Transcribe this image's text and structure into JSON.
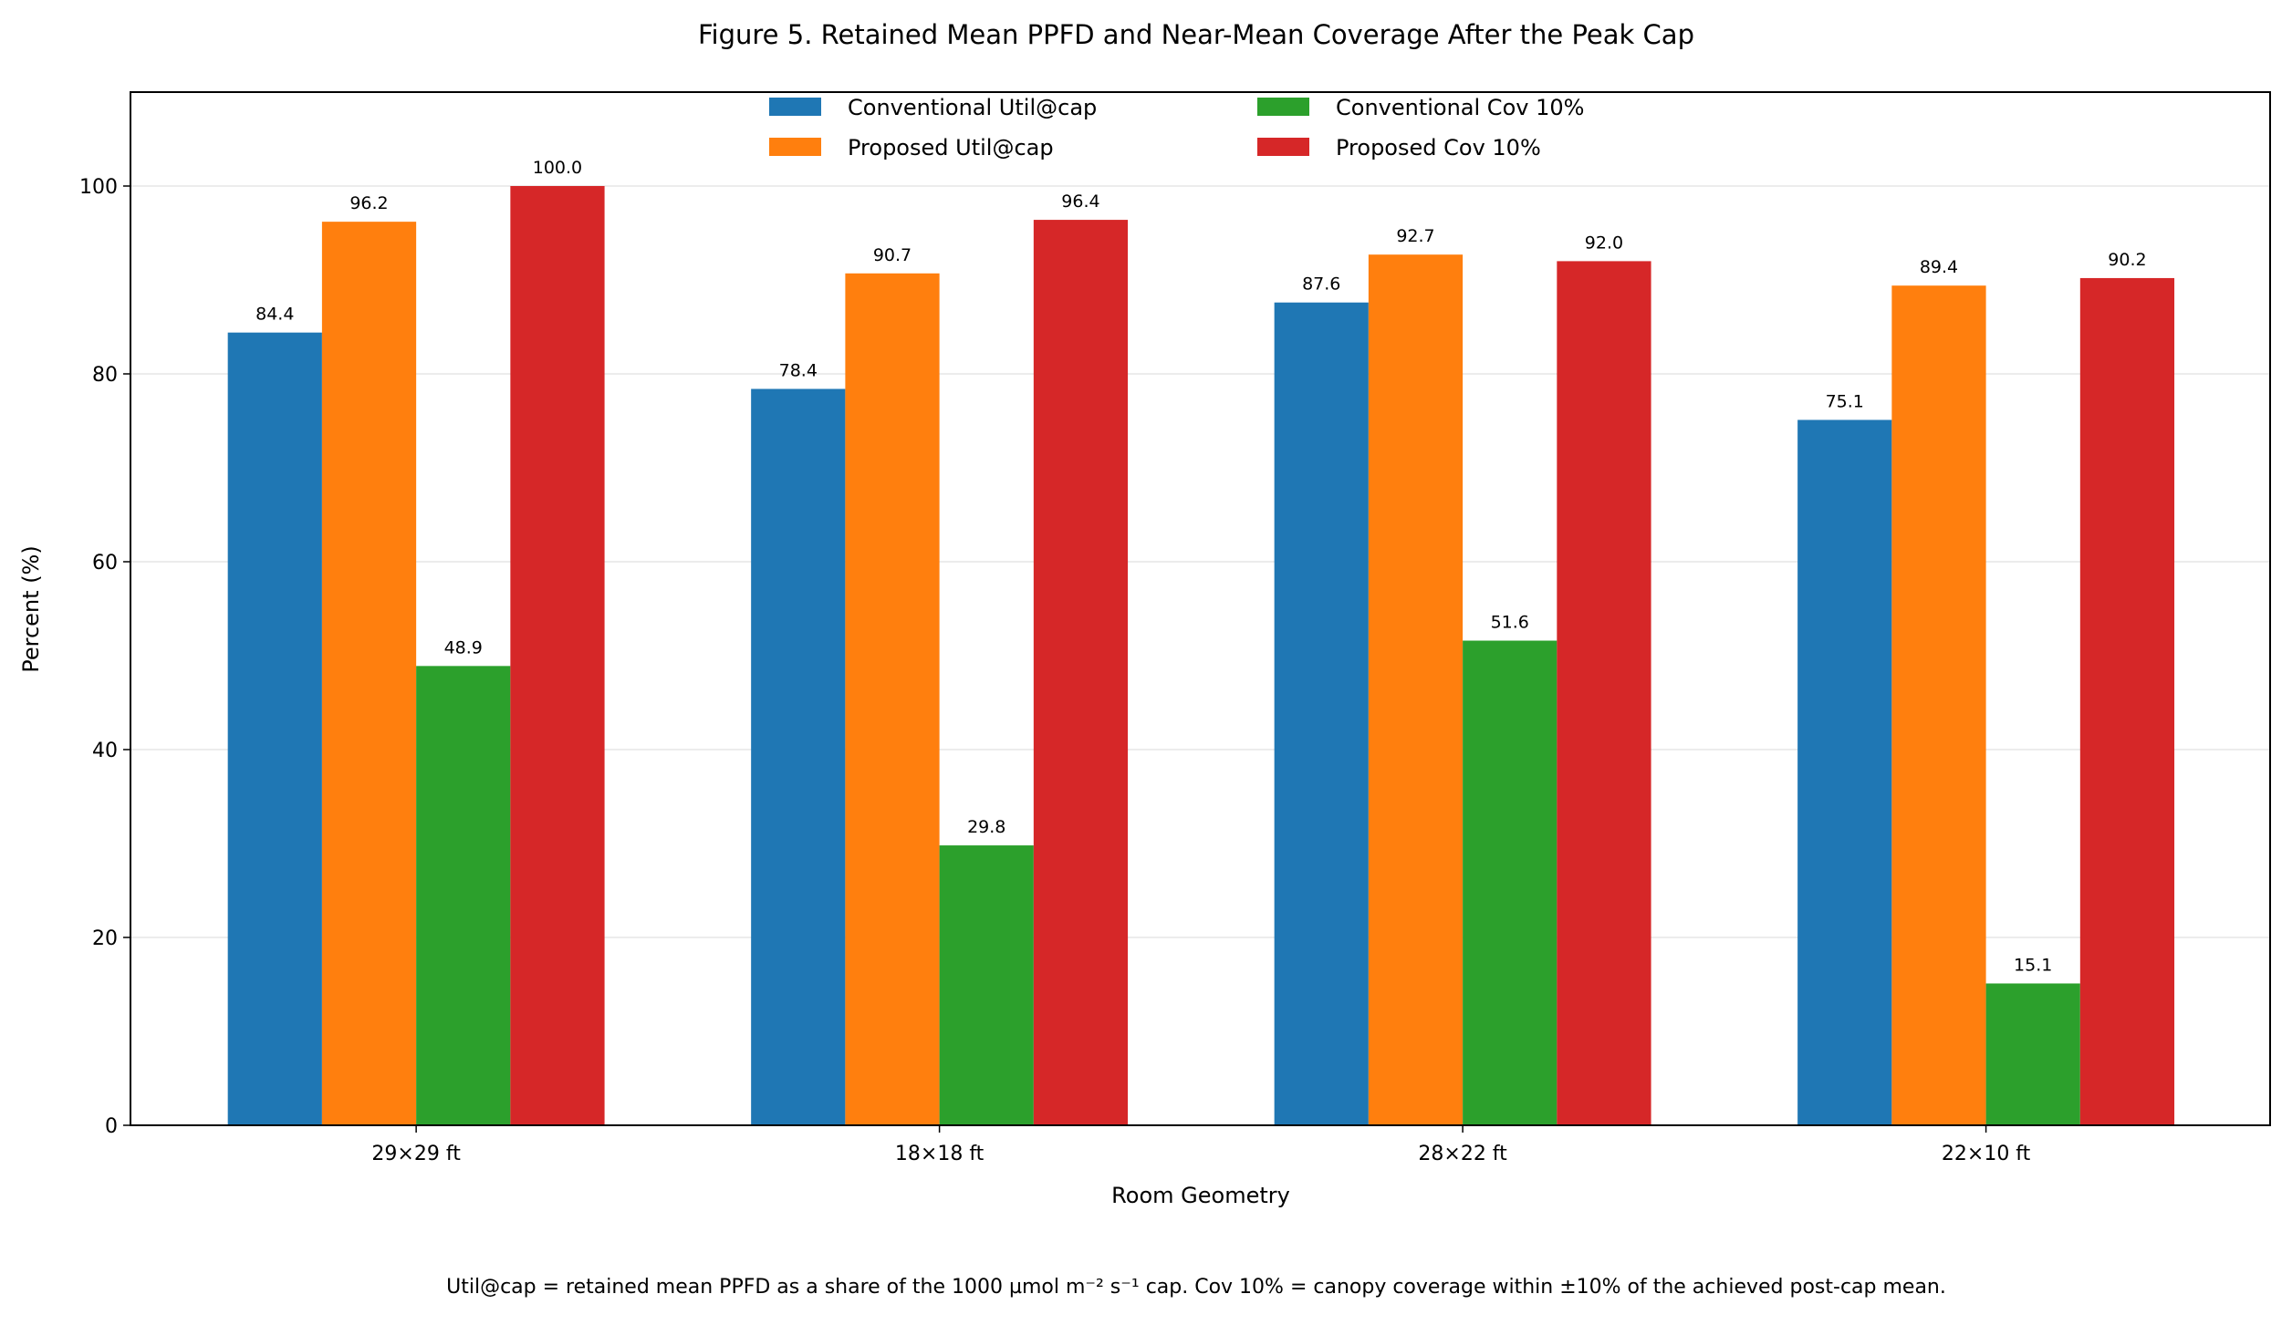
{
  "chart_data": {
    "type": "bar",
    "title": "Figure 5. Retained Mean PPFD and Near-Mean Coverage After the Peak Cap",
    "xlabel": "Room Geometry",
    "ylabel": "Percent (%)",
    "ylim": [
      0,
      110
    ],
    "yticks": [
      0,
      20,
      40,
      60,
      80,
      100
    ],
    "grid": "horizontal",
    "legend_position": "top-center",
    "categories": [
      "29×29 ft",
      "18×18 ft",
      "28×22 ft",
      "22×10 ft"
    ],
    "series": [
      {
        "name": "Conventional  Util@cap",
        "color": "#1f77b4",
        "values": [
          84.4,
          78.4,
          87.6,
          75.1
        ]
      },
      {
        "name": "Proposed  Util@cap",
        "color": "#ff7f0e",
        "values": [
          96.2,
          90.7,
          92.7,
          89.4
        ]
      },
      {
        "name": "Conventional  Cov 10%",
        "color": "#2ca02c",
        "values": [
          48.9,
          29.8,
          51.6,
          15.1
        ]
      },
      {
        "name": "Proposed  Cov 10%",
        "color": "#d62728",
        "values": [
          100.0,
          96.4,
          92.0,
          90.2
        ]
      }
    ],
    "footnote": "Util@cap = retained mean PPFD as a share of the 1000 µmol m⁻² s⁻¹ cap. Cov 10% = canopy coverage within ±10% of the achieved post-cap mean."
  }
}
